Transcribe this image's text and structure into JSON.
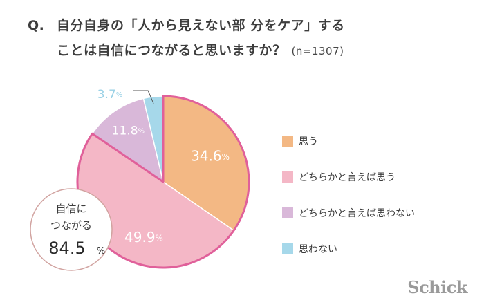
{
  "question": {
    "prefix": "Q.",
    "line1": "自分自身の「人から見えない部 分をケア」する",
    "line2": "ことは自信につながると思いますか？",
    "sample": "(n=1307)"
  },
  "callout": {
    "line1": "自信に",
    "line2": "つながる",
    "value": "84.5",
    "unit": "%"
  },
  "logo": "Schick",
  "colors": {
    "orange": "#f3b884",
    "pink": "#f4b7c6",
    "lavender": "#d9b8d9",
    "blue": "#a6d8ea",
    "highlight_border": "#e0609a"
  },
  "chart_data": {
    "type": "pie",
    "unit": "%",
    "slices": [
      {
        "label": "思う",
        "value": 34.6,
        "color": "#f3b884"
      },
      {
        "label": "どちらかと言えば思う",
        "value": 49.9,
        "color": "#f4b7c6"
      },
      {
        "label": "どちらかと言えば思わない",
        "value": 11.8,
        "color": "#d9b8d9"
      },
      {
        "label": "思わない",
        "value": 3.7,
        "color": "#a6d8ea"
      }
    ],
    "highlighted_slices": [
      "思う",
      "どちらかと言えば思う"
    ],
    "legend_position": "right"
  }
}
